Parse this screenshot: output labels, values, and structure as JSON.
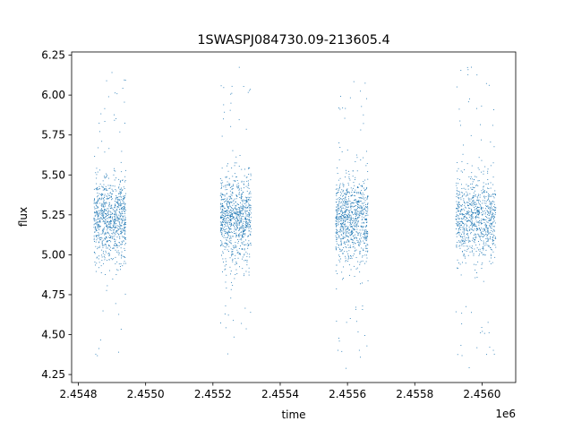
{
  "chart_data": {
    "type": "scatter",
    "title": "1SWASPJ084730.09-213605.4",
    "xlabel": "time",
    "ylabel": "flux",
    "x_offset_label": "1e6",
    "xlim": [
      2454780,
      2456100
    ],
    "ylim": [
      4.2,
      6.27
    ],
    "x_ticks": [
      2454800,
      2455000,
      2455200,
      2455400,
      2455600,
      2455800,
      2456000
    ],
    "x_tick_labels": [
      "2.4548",
      "2.4550",
      "2.4552",
      "2.4554",
      "2.4556",
      "2.4558",
      "2.4560"
    ],
    "y_ticks": [
      4.25,
      4.5,
      4.75,
      5.0,
      5.25,
      5.5,
      5.75,
      6.0,
      6.25
    ],
    "y_tick_labels": [
      "4.25",
      "4.50",
      "4.75",
      "5.00",
      "5.25",
      "5.50",
      "5.75",
      "6.00",
      "6.25"
    ],
    "grid": false,
    "marker_color": "#1f77b4",
    "series": [
      {
        "observing_seasons": [
          {
            "x_range": [
              2454845,
              2454940
            ],
            "flux_center": 5.22,
            "flux_range": [
              4.35,
              6.17
            ]
          },
          {
            "x_range": [
              2455221,
              2455312
            ],
            "flux_center": 5.22,
            "flux_range": [
              4.35,
              6.18
            ]
          },
          {
            "x_range": [
              2455564,
              2455660
            ],
            "flux_center": 5.22,
            "flux_range": [
              4.27,
              6.1
            ]
          },
          {
            "x_range": [
              2455921,
              2456040
            ],
            "flux_center": 5.22,
            "flux_range": [
              4.28,
              6.18
            ]
          }
        ]
      }
    ]
  }
}
